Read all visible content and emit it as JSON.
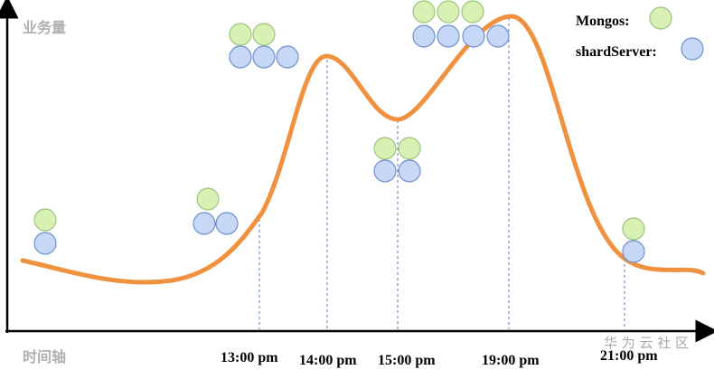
{
  "axes": {
    "y_label": "业务量",
    "x_label": "时间轴"
  },
  "times": [
    "13:00 pm",
    "14:00 pm",
    "15:00 pm",
    "19:00 pm",
    "21:00 pm"
  ],
  "legend": {
    "mongos": "Mongos:",
    "shard": "shardServer:"
  },
  "watermark": "华 为 云 社 区"
}
